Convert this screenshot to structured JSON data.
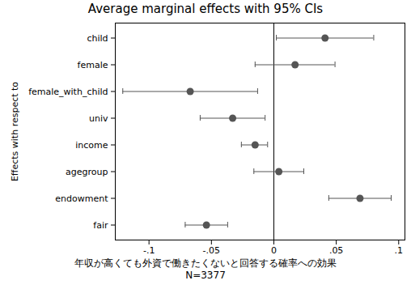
{
  "chart_data": {
    "type": "scatter",
    "orientation": "horizontal",
    "title": "Average marginal effects with 95% CIs",
    "x_label": "年収が高くても外資で働きたくないと回答する確率への効果",
    "y_label": "Effects with respect to",
    "note": "N=3377",
    "categories": [
      "child",
      "female",
      "female_with_child",
      "univ",
      "income",
      "agegroup",
      "endowment",
      "fair"
    ],
    "values": [
      0.041,
      0.017,
      -0.067,
      -0.033,
      -0.015,
      0.004,
      0.069,
      -0.054
    ],
    "ci_lower": [
      0.002,
      -0.015,
      -0.121,
      -0.059,
      -0.026,
      -0.016,
      0.044,
      -0.071
    ],
    "ci_upper": [
      0.08,
      0.049,
      -0.013,
      -0.007,
      -0.005,
      0.024,
      0.094,
      -0.037
    ],
    "xlim": [
      -0.127,
      0.105
    ],
    "xticks": [
      {
        "value": -0.1,
        "label": "-.1"
      },
      {
        "value": -0.05,
        "label": "-.05"
      },
      0,
      {
        "value": 0.05,
        "label": ".05"
      },
      {
        "value": 0.1,
        "label": ".1"
      }
    ],
    "reference_line": 0,
    "color": "#555555",
    "marker": "circle",
    "grid": false
  }
}
